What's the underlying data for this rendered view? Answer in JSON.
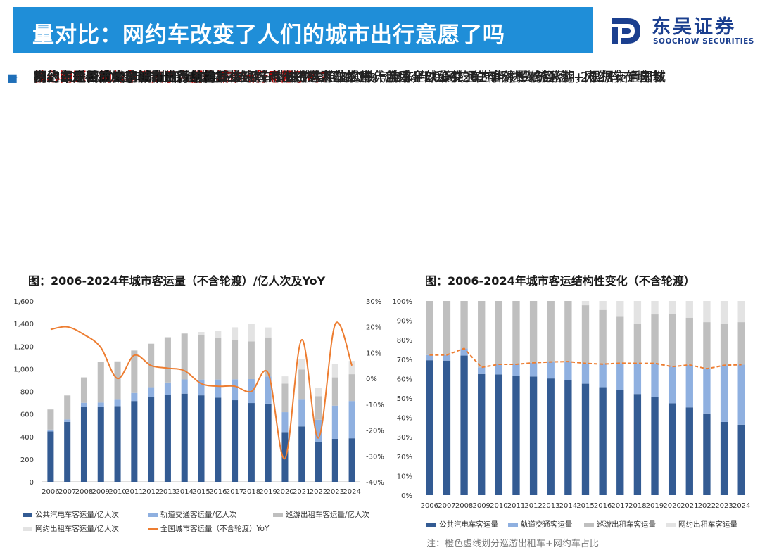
{
  "header": {
    "title": "量对比：网约车改变了人们的城市出行意愿了吗"
  },
  "logo": {
    "name_cn": "东吴证券",
    "name_en": "SOOCHOW SECURITIES"
  },
  "content": {
    "core": {
      "mark": "■",
      "text": "核心问题：网约车改变了人们的城市出行意愿了吗?"
    },
    "q1": {
      "mark": "➢",
      "text": "网约车是否扩大了城市出行总量?"
    },
    "p1": {
      "mark": "•",
      "lines": [
        "网约车商业模式的变革并没有显著带来城市出行意愿的提升。2014年后网约车市场进入破冰期，根据交通部数",
        "据，2014-2019城市出行年均总量维持在1400亿人次水平，后受全球公共卫生事件影响回落。2024年全国城",
        "市出行总量（不含轮渡）为1067亿人次，尚未恢复至2019年前水平。"
      ]
    },
    "q2": {
      "mark": "➢",
      "text": "网约车是否改变了城市出行结构?"
    },
    "p2": {
      "mark": "•",
      "lines": [
        "网约车对城市客运结构的影响主要体现在对传统巡游车的替代作用，2006-2024年，传统巡游+网约车在城市",
        "客运量中的占比稳定在30%左右，出租车整体并未抢占公共汽电车+轨道交通的客运量份额。"
      ]
    }
  },
  "colors": {
    "bus": "#335b93",
    "rail": "#8fb0e0",
    "taxi": "#bfbfbf",
    "ride": "#e3e3e3",
    "line": "#ed7d31"
  },
  "chart_data": [
    {
      "type": "bar",
      "stacked": true,
      "title": "图：2006-2024年城市客运量（不含轮渡）/亿人次及YoY",
      "categories": [
        "2006",
        "2007",
        "2008",
        "2009",
        "2010",
        "2011",
        "2012",
        "2013",
        "2014",
        "2015",
        "2016",
        "2017",
        "2018",
        "2019",
        "2020",
        "2021",
        "2022",
        "2023",
        "2024"
      ],
      "ylim": [
        0,
        1600
      ],
      "yticks": [
        0,
        200,
        400,
        600,
        800,
        1000,
        1200,
        1400,
        1600
      ],
      "yticks_labels": [
        "0",
        "200",
        "400",
        "600",
        "800",
        "1,000",
        "1,200",
        "1,400",
        "1,600"
      ],
      "y2lim": [
        -40,
        30
      ],
      "y2ticks": [
        -40,
        -30,
        -20,
        -10,
        0,
        10,
        20,
        30
      ],
      "y2ticks_labels": [
        "-40%",
        "-30%",
        "-20%",
        "-10%",
        "0%",
        "10%",
        "20%",
        "30%"
      ],
      "series": [
        {
          "name": "公共汽电车客运量/亿人次",
          "values": [
            445,
            530,
            665,
            665,
            670,
            715,
            750,
            770,
            780,
            765,
            745,
            722,
            697,
            692,
            440,
            490,
            355,
            380,
            385
          ]
        },
        {
          "name": "轨道交通客运量/亿人次",
          "values": [
            17,
            22,
            34,
            36,
            56,
            71,
            87,
            109,
            126,
            140,
            160,
            185,
            212,
            239,
            176,
            237,
            194,
            294,
            330
          ]
        },
        {
          "name": "巡游出租车客运量/亿人次",
          "values": [
            178,
            212,
            225,
            360,
            340,
            376,
            385,
            400,
            406,
            392,
            370,
            352,
            334,
            347,
            253,
            266,
            209,
            250,
            237
          ]
        },
        {
          "name": "网约出租车客运量/亿人次",
          "values": [
            0,
            0,
            0,
            0,
            0,
            0,
            0,
            0,
            0,
            29,
            63,
            108,
            157,
            88,
            64,
            94,
            75,
            120,
            118
          ]
        },
        {
          "name": "全国城市客运量（不含轮渡）YoY",
          "axis": "secondary",
          "values": [
            19,
            20,
            17,
            12,
            0,
            9,
            5,
            4,
            3,
            -2,
            -3,
            -3,
            -5,
            2,
            -31,
            15,
            -23,
            21,
            5
          ]
        }
      ],
      "legend": "bottom"
    },
    {
      "type": "bar",
      "stacked": true,
      "title": "图：2006-2024年城市客运结构性变化（不含轮渡）",
      "categories": [
        "2006",
        "2007",
        "2008",
        "2009",
        "2010",
        "2011",
        "2012",
        "2013",
        "2014",
        "2015",
        "2016",
        "2017",
        "2018",
        "2019",
        "2020",
        "2021",
        "2022",
        "2023",
        "2024"
      ],
      "ylim": [
        0,
        100
      ],
      "yticks_labels": [
        "0%",
        "10%",
        "20%",
        "30%",
        "40%",
        "50%",
        "60%",
        "70%",
        "80%",
        "90%",
        "100%"
      ],
      "series": [
        {
          "name": "公共汽电车客运量",
          "values": [
            69.5,
            69.3,
            71.9,
            62.4,
            62.2,
            61.3,
            61.1,
            60.1,
            59.2,
            57.4,
            55.6,
            54.1,
            52.1,
            50.5,
            47.3,
            45.2,
            42.1,
            37.7,
            36.3
          ]
        },
        {
          "name": "轨道交通客运量",
          "values": [
            2.7,
            2.9,
            3.7,
            3.4,
            5.2,
            6.1,
            7.1,
            8.5,
            9.6,
            10.5,
            11.9,
            13.9,
            15.8,
            17.4,
            18.9,
            21.9,
            23.0,
            29.2,
            30.9
          ]
        },
        {
          "name": "巡游出租车客运量",
          "values": [
            27.8,
            27.8,
            24.4,
            34.2,
            32.6,
            32.6,
            31.8,
            31.4,
            31.2,
            29.9,
            27.9,
            23.9,
            20.4,
            25.2,
            27.1,
            24.3,
            24.0,
            21.4,
            21.9
          ]
        },
        {
          "name": "网约出租车客运量",
          "values": [
            0,
            0,
            0,
            0,
            0,
            0,
            0,
            0,
            0,
            2.2,
            4.6,
            8.1,
            11.7,
            6.9,
            6.7,
            8.6,
            10.9,
            11.7,
            10.9
          ]
        }
      ],
      "legend": "bottom",
      "annotation": "注：橙色虚线划分巡游出租车+网约车占比"
    }
  ]
}
